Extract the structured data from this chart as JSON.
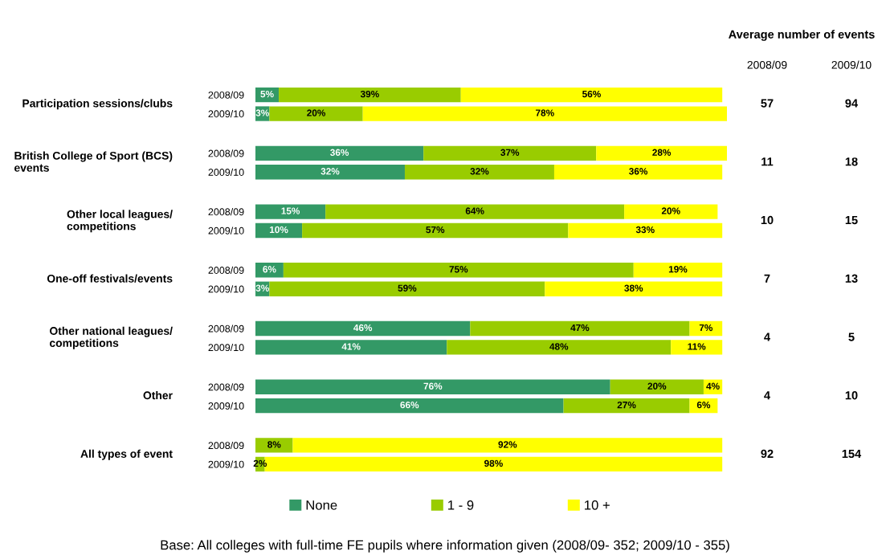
{
  "chart_data": {
    "type": "bar",
    "orientation": "horizontal",
    "stacked": true,
    "categories": [
      "2008/09",
      "2009/10",
      "2008/09",
      "2009/10",
      "2008/09",
      "2009/10",
      "2008/09",
      "2009/10",
      "2008/09",
      "2009/10",
      "2008/09",
      "2009/10",
      "2008/09",
      "2009/10"
    ],
    "series": [
      {
        "name": "None",
        "color": "#339966",
        "values": [
          5,
          3,
          36,
          32,
          15,
          10,
          6,
          3,
          46,
          41,
          76,
          66,
          0,
          0
        ],
        "value_labels": [
          "5%",
          "3%",
          "36%",
          "32%",
          "15%",
          "10%",
          "6%",
          "3%",
          "46%",
          "41%",
          "76%",
          "66%",
          null,
          null
        ]
      },
      {
        "name": "1 - 9",
        "color": "#99cc00",
        "values": [
          39,
          20,
          37,
          32,
          64,
          57,
          75,
          59,
          47,
          48,
          20,
          27,
          8,
          2
        ],
        "value_labels": [
          "39%",
          "20%",
          "37%",
          "32%",
          "64%",
          "57%",
          "75%",
          "59%",
          "47%",
          "48%",
          "20%",
          "27%",
          "8%",
          "2%"
        ]
      },
      {
        "name": "10 +",
        "color": "#ffff00",
        "values": [
          56,
          78,
          28,
          36,
          20,
          33,
          19,
          38,
          7,
          11,
          4,
          6,
          92,
          98
        ],
        "value_labels": [
          "56%",
          "78%",
          "28%",
          "36%",
          "20%",
          "33%",
          "19%",
          "38%",
          "7%",
          "11%",
          "4%",
          "6%",
          "92%",
          "98%"
        ]
      }
    ],
    "xlim": [
      0,
      101
    ],
    "tick_labels": "y",
    "legend": "bottom",
    "annotations": [
      "Participation sessions/clubs",
      "British College of Sport (BCS) events",
      "Other local leagues/ competitions",
      "One-off festivals/events",
      "Other national leagues/ competitions",
      "Other",
      "All types of event",
      "Average number of events",
      "2008/09",
      "2009/10",
      "57",
      "94",
      "11",
      "18",
      "10",
      "15",
      "7",
      "13",
      "4",
      "5",
      "4",
      "10",
      "92",
      "154",
      "Base: All colleges with full-time FE pupils where information given (2008/09- 352; 2009/10 - 355)"
    ]
  }
}
